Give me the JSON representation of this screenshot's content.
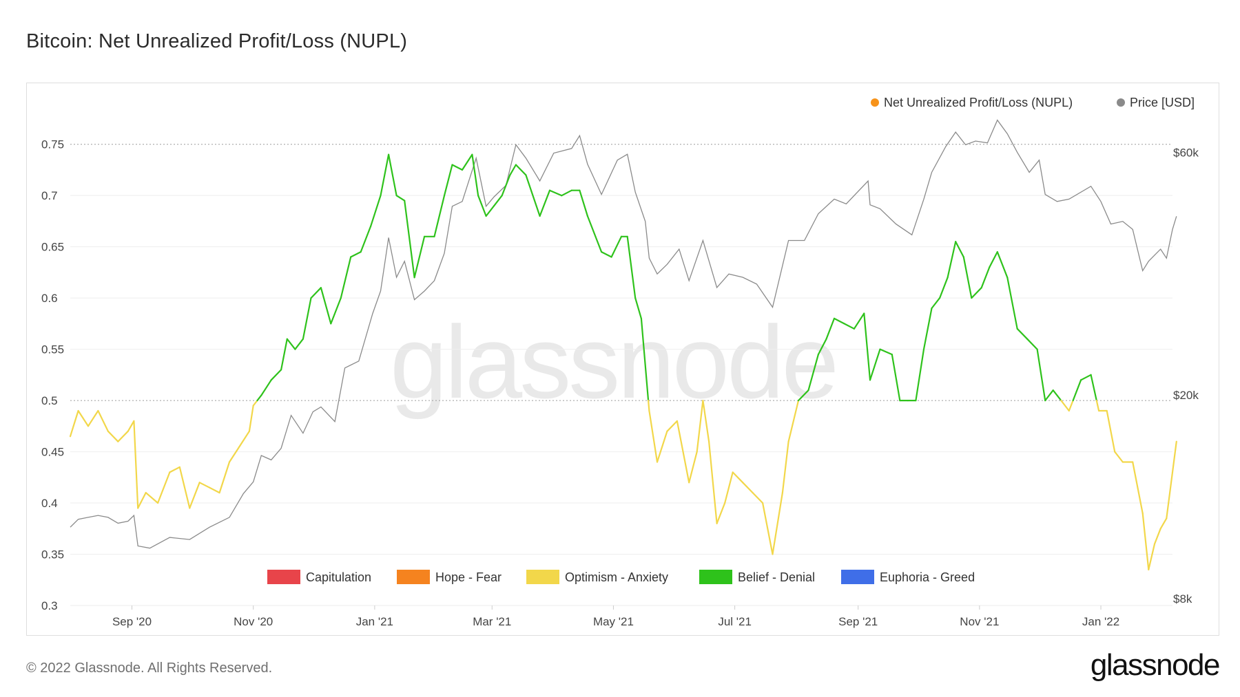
{
  "title": "Bitcoin: Net Unrealized Profit/Loss (NUPL)",
  "footer": {
    "copyright": "© 2022 Glassnode. All Rights Reserved.",
    "logo": "glassnode"
  },
  "watermark": "glassnode",
  "colors": {
    "price": "#8a8a8a",
    "capitulation": "#e8444a",
    "hope_fear": "#f5831f",
    "optimism_anxiety": "#f2d74a",
    "belief_denial": "#2ec21b",
    "euphoria_greed": "#3f6ee8",
    "nupl_marker": "#f7931a"
  },
  "chart_data": {
    "type": "line",
    "legend_top": [
      {
        "label": "Net Unrealized Profit/Loss (NUPL)",
        "color": "#f7931a"
      },
      {
        "label": "Price [USD]",
        "color": "#8a8a8a"
      }
    ],
    "legend_bottom": [
      {
        "label": "Capitulation",
        "color": "#e8444a"
      },
      {
        "label": "Hope - Fear",
        "color": "#f5831f"
      },
      {
        "label": "Optimism - Anxiety",
        "color": "#f2d74a"
      },
      {
        "label": "Belief - Denial",
        "color": "#2ec21b"
      },
      {
        "label": "Euphoria - Greed",
        "color": "#3f6ee8"
      }
    ],
    "x_ticks": [
      {
        "label": "Sep '20",
        "date": "2020-09-01"
      },
      {
        "label": "Nov '20",
        "date": "2020-11-01"
      },
      {
        "label": "Jan '21",
        "date": "2021-01-01"
      },
      {
        "label": "Mar '21",
        "date": "2021-03-01"
      },
      {
        "label": "May '21",
        "date": "2021-05-01"
      },
      {
        "label": "Jul '21",
        "date": "2021-07-01"
      },
      {
        "label": "Sep '21",
        "date": "2021-09-01"
      },
      {
        "label": "Nov '21",
        "date": "2021-11-01"
      },
      {
        "label": "Jan '22",
        "date": "2022-01-01"
      }
    ],
    "x_range": [
      "2020-08-01",
      "2022-02-06"
    ],
    "y_left": {
      "min": 0.3,
      "max": 0.78,
      "ticks": [
        "0.3",
        "0.35",
        "0.4",
        "0.45",
        "0.5",
        "0.55",
        "0.6",
        "0.65",
        "0.7",
        "0.75"
      ],
      "tick_values": [
        0.3,
        0.35,
        0.4,
        0.45,
        0.5,
        0.55,
        0.6,
        0.65,
        0.7,
        0.75
      ]
    },
    "y_right": {
      "scale": "log",
      "min": 8000,
      "max": 70000,
      "ticks": [
        {
          "label": "$8k",
          "value": 8000
        },
        {
          "label": "$20k",
          "value": 20000
        },
        {
          "label": "$60k",
          "value": 60000
        }
      ]
    },
    "zones": [
      {
        "name": "Capitulation",
        "from": -1,
        "to": 0
      },
      {
        "name": "Hope - Fear",
        "from": 0,
        "to": 0.25
      },
      {
        "name": "Optimism - Anxiety",
        "from": 0.25,
        "to": 0.5
      },
      {
        "name": "Belief - Denial",
        "from": 0.5,
        "to": 0.75
      },
      {
        "name": "Euphoria - Greed",
        "from": 0.75,
        "to": 1
      }
    ],
    "series": [
      {
        "name": "Net Unrealized Profit/Loss (NUPL)",
        "points": [
          [
            "2020-08-01",
            0.465
          ],
          [
            "2020-08-05",
            0.49
          ],
          [
            "2020-08-10",
            0.475
          ],
          [
            "2020-08-15",
            0.49
          ],
          [
            "2020-08-20",
            0.47
          ],
          [
            "2020-08-25",
            0.46
          ],
          [
            "2020-08-30",
            0.47
          ],
          [
            "2020-09-02",
            0.48
          ],
          [
            "2020-09-04",
            0.395
          ],
          [
            "2020-09-08",
            0.41
          ],
          [
            "2020-09-14",
            0.4
          ],
          [
            "2020-09-20",
            0.43
          ],
          [
            "2020-09-25",
            0.435
          ],
          [
            "2020-09-30",
            0.395
          ],
          [
            "2020-10-05",
            0.42
          ],
          [
            "2020-10-10",
            0.415
          ],
          [
            "2020-10-15",
            0.41
          ],
          [
            "2020-10-20",
            0.44
          ],
          [
            "2020-10-25",
            0.455
          ],
          [
            "2020-10-30",
            0.47
          ],
          [
            "2020-11-01",
            0.495
          ],
          [
            "2020-11-05",
            0.505
          ],
          [
            "2020-11-10",
            0.52
          ],
          [
            "2020-11-15",
            0.53
          ],
          [
            "2020-11-18",
            0.56
          ],
          [
            "2020-11-22",
            0.55
          ],
          [
            "2020-11-26",
            0.56
          ],
          [
            "2020-11-30",
            0.6
          ],
          [
            "2020-12-05",
            0.61
          ],
          [
            "2020-12-10",
            0.575
          ],
          [
            "2020-12-15",
            0.6
          ],
          [
            "2020-12-20",
            0.64
          ],
          [
            "2020-12-25",
            0.645
          ],
          [
            "2020-12-30",
            0.67
          ],
          [
            "2021-01-04",
            0.7
          ],
          [
            "2021-01-08",
            0.74
          ],
          [
            "2021-01-12",
            0.7
          ],
          [
            "2021-01-16",
            0.695
          ],
          [
            "2021-01-21",
            0.62
          ],
          [
            "2021-01-26",
            0.66
          ],
          [
            "2021-01-31",
            0.66
          ],
          [
            "2021-02-05",
            0.7
          ],
          [
            "2021-02-09",
            0.73
          ],
          [
            "2021-02-14",
            0.725
          ],
          [
            "2021-02-19",
            0.74
          ],
          [
            "2021-02-22",
            0.7
          ],
          [
            "2021-02-26",
            0.68
          ],
          [
            "2021-03-02",
            0.69
          ],
          [
            "2021-03-06",
            0.7
          ],
          [
            "2021-03-10",
            0.72
          ],
          [
            "2021-03-13",
            0.73
          ],
          [
            "2021-03-18",
            0.72
          ],
          [
            "2021-03-25",
            0.68
          ],
          [
            "2021-03-30",
            0.705
          ],
          [
            "2021-04-05",
            0.7
          ],
          [
            "2021-04-10",
            0.705
          ],
          [
            "2021-04-14",
            0.705
          ],
          [
            "2021-04-18",
            0.68
          ],
          [
            "2021-04-25",
            0.645
          ],
          [
            "2021-04-30",
            0.64
          ],
          [
            "2021-05-05",
            0.66
          ],
          [
            "2021-05-08",
            0.66
          ],
          [
            "2021-05-12",
            0.6
          ],
          [
            "2021-05-15",
            0.58
          ],
          [
            "2021-05-19",
            0.49
          ],
          [
            "2021-05-23",
            0.44
          ],
          [
            "2021-05-28",
            0.47
          ],
          [
            "2021-06-02",
            0.48
          ],
          [
            "2021-06-08",
            0.42
          ],
          [
            "2021-06-12",
            0.45
          ],
          [
            "2021-06-15",
            0.5
          ],
          [
            "2021-06-18",
            0.46
          ],
          [
            "2021-06-22",
            0.38
          ],
          [
            "2021-06-26",
            0.4
          ],
          [
            "2021-06-30",
            0.43
          ],
          [
            "2021-07-05",
            0.42
          ],
          [
            "2021-07-10",
            0.41
          ],
          [
            "2021-07-15",
            0.4
          ],
          [
            "2021-07-20",
            0.35
          ],
          [
            "2021-07-25",
            0.41
          ],
          [
            "2021-07-28",
            0.46
          ],
          [
            "2021-08-02",
            0.5
          ],
          [
            "2021-08-07",
            0.51
          ],
          [
            "2021-08-12",
            0.545
          ],
          [
            "2021-08-16",
            0.56
          ],
          [
            "2021-08-20",
            0.58
          ],
          [
            "2021-08-25",
            0.575
          ],
          [
            "2021-08-30",
            0.57
          ],
          [
            "2021-09-04",
            0.585
          ],
          [
            "2021-09-07",
            0.52
          ],
          [
            "2021-09-12",
            0.55
          ],
          [
            "2021-09-18",
            0.545
          ],
          [
            "2021-09-22",
            0.5
          ],
          [
            "2021-09-26",
            0.5
          ],
          [
            "2021-09-30",
            0.5
          ],
          [
            "2021-10-04",
            0.55
          ],
          [
            "2021-10-08",
            0.59
          ],
          [
            "2021-10-12",
            0.6
          ],
          [
            "2021-10-16",
            0.62
          ],
          [
            "2021-10-20",
            0.655
          ],
          [
            "2021-10-24",
            0.64
          ],
          [
            "2021-10-28",
            0.6
          ],
          [
            "2021-11-02",
            0.61
          ],
          [
            "2021-11-06",
            0.63
          ],
          [
            "2021-11-10",
            0.645
          ],
          [
            "2021-11-15",
            0.62
          ],
          [
            "2021-11-20",
            0.57
          ],
          [
            "2021-11-25",
            0.56
          ],
          [
            "2021-11-30",
            0.55
          ],
          [
            "2021-12-04",
            0.5
          ],
          [
            "2021-12-08",
            0.51
          ],
          [
            "2021-12-12",
            0.5
          ],
          [
            "2021-12-16",
            0.49
          ],
          [
            "2021-12-22",
            0.52
          ],
          [
            "2021-12-27",
            0.525
          ],
          [
            "2021-12-31",
            0.49
          ],
          [
            "2022-01-04",
            0.49
          ],
          [
            "2022-01-08",
            0.45
          ],
          [
            "2022-01-12",
            0.44
          ],
          [
            "2022-01-17",
            0.44
          ],
          [
            "2022-01-22",
            0.39
          ],
          [
            "2022-01-25",
            0.335
          ],
          [
            "2022-01-28",
            0.36
          ],
          [
            "2022-01-31",
            0.375
          ],
          [
            "2022-02-03",
            0.385
          ],
          [
            "2022-02-06",
            0.43
          ],
          [
            "2022-02-08",
            0.46
          ]
        ]
      },
      {
        "name": "Price [USD]",
        "points": [
          [
            "2020-08-01",
            11300
          ],
          [
            "2020-08-05",
            11700
          ],
          [
            "2020-08-10",
            11800
          ],
          [
            "2020-08-15",
            11900
          ],
          [
            "2020-08-20",
            11800
          ],
          [
            "2020-08-25",
            11500
          ],
          [
            "2020-08-30",
            11600
          ],
          [
            "2020-09-02",
            11900
          ],
          [
            "2020-09-04",
            10400
          ],
          [
            "2020-09-10",
            10300
          ],
          [
            "2020-09-20",
            10800
          ],
          [
            "2020-09-30",
            10700
          ],
          [
            "2020-10-10",
            11300
          ],
          [
            "2020-10-20",
            11800
          ],
          [
            "2020-10-27",
            13100
          ],
          [
            "2020-11-01",
            13800
          ],
          [
            "2020-11-05",
            15500
          ],
          [
            "2020-11-10",
            15200
          ],
          [
            "2020-11-15",
            16000
          ],
          [
            "2020-11-20",
            18500
          ],
          [
            "2020-11-26",
            17100
          ],
          [
            "2020-12-01",
            18800
          ],
          [
            "2020-12-05",
            19200
          ],
          [
            "2020-12-12",
            18000
          ],
          [
            "2020-12-17",
            22800
          ],
          [
            "2020-12-24",
            23500
          ],
          [
            "2020-12-31",
            29000
          ],
          [
            "2021-01-04",
            32000
          ],
          [
            "2021-01-08",
            40500
          ],
          [
            "2021-01-12",
            34000
          ],
          [
            "2021-01-16",
            36500
          ],
          [
            "2021-01-21",
            30800
          ],
          [
            "2021-01-26",
            32000
          ],
          [
            "2021-01-31",
            33500
          ],
          [
            "2021-02-05",
            37800
          ],
          [
            "2021-02-09",
            46500
          ],
          [
            "2021-02-14",
            47500
          ],
          [
            "2021-02-21",
            57500
          ],
          [
            "2021-02-26",
            46500
          ],
          [
            "2021-03-02",
            48500
          ],
          [
            "2021-03-08",
            51000
          ],
          [
            "2021-03-13",
            61000
          ],
          [
            "2021-03-18",
            57500
          ],
          [
            "2021-03-25",
            52000
          ],
          [
            "2021-04-01",
            58800
          ],
          [
            "2021-04-10",
            60000
          ],
          [
            "2021-04-14",
            63500
          ],
          [
            "2021-04-18",
            56000
          ],
          [
            "2021-04-25",
            49000
          ],
          [
            "2021-05-03",
            57000
          ],
          [
            "2021-05-08",
            58500
          ],
          [
            "2021-05-12",
            49500
          ],
          [
            "2021-05-17",
            43500
          ],
          [
            "2021-05-19",
            37000
          ],
          [
            "2021-05-23",
            34500
          ],
          [
            "2021-05-28",
            36000
          ],
          [
            "2021-06-03",
            38500
          ],
          [
            "2021-06-08",
            33500
          ],
          [
            "2021-06-15",
            40000
          ],
          [
            "2021-06-22",
            32500
          ],
          [
            "2021-06-28",
            34500
          ],
          [
            "2021-07-05",
            34000
          ],
          [
            "2021-07-12",
            33000
          ],
          [
            "2021-07-20",
            29800
          ],
          [
            "2021-07-28",
            40000
          ],
          [
            "2021-08-05",
            40000
          ],
          [
            "2021-08-12",
            45000
          ],
          [
            "2021-08-20",
            48000
          ],
          [
            "2021-08-26",
            47000
          ],
          [
            "2021-09-06",
            52000
          ],
          [
            "2021-09-07",
            46800
          ],
          [
            "2021-09-12",
            46000
          ],
          [
            "2021-09-20",
            43000
          ],
          [
            "2021-09-28",
            41000
          ],
          [
            "2021-10-04",
            48000
          ],
          [
            "2021-10-08",
            54000
          ],
          [
            "2021-10-15",
            60500
          ],
          [
            "2021-10-20",
            64500
          ],
          [
            "2021-10-25",
            61000
          ],
          [
            "2021-10-30",
            62000
          ],
          [
            "2021-11-05",
            61500
          ],
          [
            "2021-11-10",
            68000
          ],
          [
            "2021-11-15",
            64000
          ],
          [
            "2021-11-20",
            59000
          ],
          [
            "2021-11-26",
            54000
          ],
          [
            "2021-12-01",
            57000
          ],
          [
            "2021-12-04",
            49000
          ],
          [
            "2021-12-10",
            47500
          ],
          [
            "2021-12-16",
            48000
          ],
          [
            "2021-12-27",
            50800
          ],
          [
            "2022-01-01",
            47500
          ],
          [
            "2022-01-06",
            43000
          ],
          [
            "2022-01-12",
            43500
          ],
          [
            "2022-01-17",
            42000
          ],
          [
            "2022-01-22",
            35000
          ],
          [
            "2022-01-25",
            36500
          ],
          [
            "2022-01-31",
            38500
          ],
          [
            "2022-02-03",
            37000
          ],
          [
            "2022-02-06",
            42000
          ],
          [
            "2022-02-08",
            44500
          ]
        ]
      }
    ]
  }
}
